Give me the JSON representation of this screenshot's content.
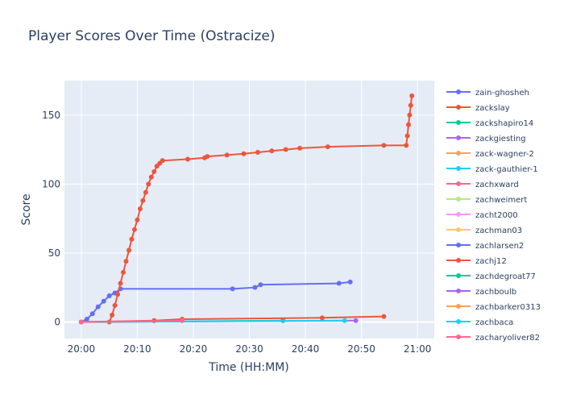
{
  "chart_data": {
    "type": "line",
    "title": "Player Scores Over Time (Ostracize)",
    "xlabel": "Time (HH:MM)",
    "ylabel": "Score",
    "x_ticks": [
      "20:00",
      "20:10",
      "20:20",
      "20:30",
      "20:40",
      "20:50",
      "21:00"
    ],
    "y_ticks": [
      0,
      50,
      100,
      150
    ],
    "xlim": [
      "19:57",
      "21:03"
    ],
    "ylim": [
      -12,
      175
    ],
    "grid": true,
    "legend_position": "right",
    "series": [
      {
        "name": "zain-ghosheh",
        "color": "#636efa",
        "x": [
          "20:00",
          "20:01",
          "20:02",
          "20:03",
          "20:04",
          "20:05",
          "20:06",
          "20:07",
          "20:27",
          "20:31",
          "20:32",
          "20:46",
          "20:48"
        ],
        "y": [
          0,
          2,
          6,
          11,
          15,
          19,
          21,
          24,
          24,
          25,
          27,
          28,
          29
        ]
      },
      {
        "name": "zackslay",
        "color": "#ef553b",
        "x": [
          "20:00",
          "20:05",
          "20:05.5",
          "20:06",
          "20:06.5",
          "20:07",
          "20:07.5",
          "20:08",
          "20:08.5",
          "20:09",
          "20:09.5",
          "20:10",
          "20:10.5",
          "20:11",
          "20:11.5",
          "20:12",
          "20:12.5",
          "20:13",
          "20:13.5",
          "20:14",
          "20:14.5",
          "20:19",
          "20:22",
          "20:22.5",
          "20:26",
          "20:29",
          "20:31.5",
          "20:34",
          "20:36.5",
          "20:39",
          "20:44",
          "20:54",
          "20:58",
          "20:58.2",
          "20:58.4",
          "20:58.6",
          "20:58.8",
          "20:59"
        ],
        "y": [
          0,
          0,
          5,
          12,
          20,
          28,
          36,
          44,
          52,
          60,
          67,
          74,
          82,
          88,
          94,
          100,
          105,
          109,
          113,
          115,
          117,
          118,
          119,
          120,
          121,
          122,
          123,
          124,
          125,
          126,
          127,
          128,
          128,
          135,
          143,
          150,
          157,
          164
        ]
      },
      {
        "name": "zackshapiro14",
        "color": "#00cc96",
        "x": [
          "20:00",
          "20:36"
        ],
        "y": [
          0,
          1
        ]
      },
      {
        "name": "zackgiesting",
        "color": "#ab63fa",
        "x": [
          "20:00",
          "20:49"
        ],
        "y": [
          0,
          1
        ]
      },
      {
        "name": "zack-wagner-2",
        "color": "#ffa15a",
        "x": [
          "20:00"
        ],
        "y": [
          0
        ]
      },
      {
        "name": "zack-gauthier-1",
        "color": "#19d3f3",
        "x": [
          "20:00",
          "20:47"
        ],
        "y": [
          0,
          1
        ]
      },
      {
        "name": "zachxward",
        "color": "#ff6692",
        "x": [
          "20:00"
        ],
        "y": [
          0
        ]
      },
      {
        "name": "zachweimert",
        "color": "#b6e880",
        "x": [
          "20:00"
        ],
        "y": [
          0
        ]
      },
      {
        "name": "zacht2000",
        "color": "#ff97ff",
        "x": [
          "20:00"
        ],
        "y": [
          0
        ]
      },
      {
        "name": "zachman03",
        "color": "#fecb52",
        "x": [
          "20:00"
        ],
        "y": [
          0
        ]
      },
      {
        "name": "zachlarsen2",
        "color": "#636efa",
        "x": [
          "20:00"
        ],
        "y": [
          0
        ]
      },
      {
        "name": "zachj12",
        "color": "#ef553b",
        "x": [
          "20:00",
          "20:13",
          "20:18",
          "20:43",
          "20:54"
        ],
        "y": [
          0,
          1,
          2,
          3,
          4
        ]
      },
      {
        "name": "zachdegroat77",
        "color": "#00cc96",
        "x": [
          "20:00"
        ],
        "y": [
          0
        ]
      },
      {
        "name": "zachboulb",
        "color": "#ab63fa",
        "x": [
          "20:00"
        ],
        "y": [
          0
        ]
      },
      {
        "name": "zachbarker0313",
        "color": "#ffa15a",
        "x": [
          "20:00"
        ],
        "y": [
          0
        ]
      },
      {
        "name": "zachbaca",
        "color": "#19d3f3",
        "x": [
          "20:00"
        ],
        "y": [
          0
        ]
      },
      {
        "name": "zacharyoliver82",
        "color": "#ff6692",
        "x": [
          "20:00",
          "20:18"
        ],
        "y": [
          0,
          1
        ]
      }
    ]
  }
}
